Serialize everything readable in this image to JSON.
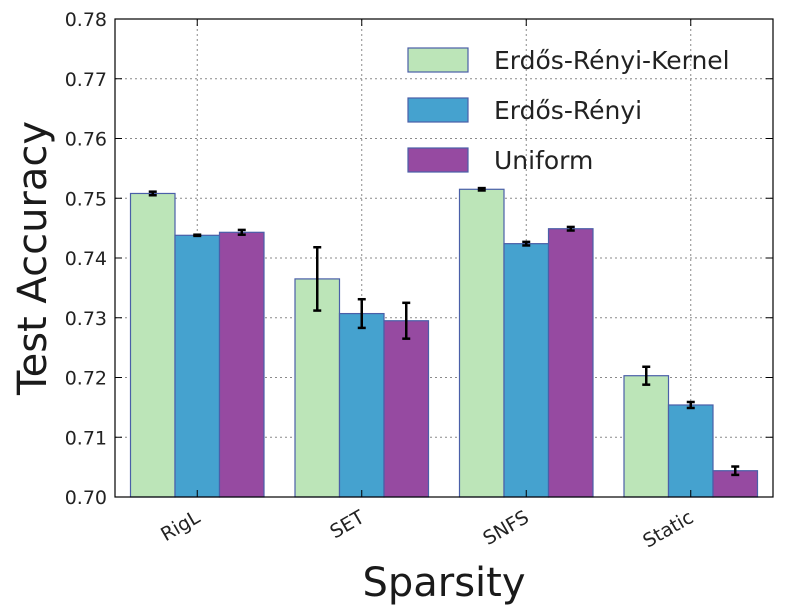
{
  "chart_data": {
    "type": "bar",
    "xlabel": "Sparsity",
    "ylabel": "Test Accuracy",
    "ylim": [
      0.7,
      0.78
    ],
    "yticks": [
      "0.70",
      "0.71",
      "0.72",
      "0.73",
      "0.74",
      "0.75",
      "0.76",
      "0.77",
      "0.78"
    ],
    "categories": [
      "RigL",
      "SET",
      "SNFS",
      "Static"
    ],
    "grid": true,
    "legend_position": "top-right",
    "series": [
      {
        "name": "Erdős-Rényi-Kernel",
        "color": "#bce5b8",
        "values": [
          0.7508,
          0.7365,
          0.7515,
          0.7203
        ],
        "errors": [
          0.0003,
          0.0053,
          0.0002,
          0.0015
        ]
      },
      {
        "name": "Erdős-Rényi",
        "color": "#45a2cf",
        "values": [
          0.7438,
          0.7307,
          0.7424,
          0.7154
        ],
        "errors": [
          0.0001,
          0.0024,
          0.0003,
          0.0005
        ]
      },
      {
        "name": "Uniform",
        "color": "#964aa1",
        "values": [
          0.7443,
          0.7295,
          0.7449,
          0.7044
        ],
        "errors": [
          0.0004,
          0.003,
          0.0003,
          0.0007
        ]
      }
    ]
  }
}
